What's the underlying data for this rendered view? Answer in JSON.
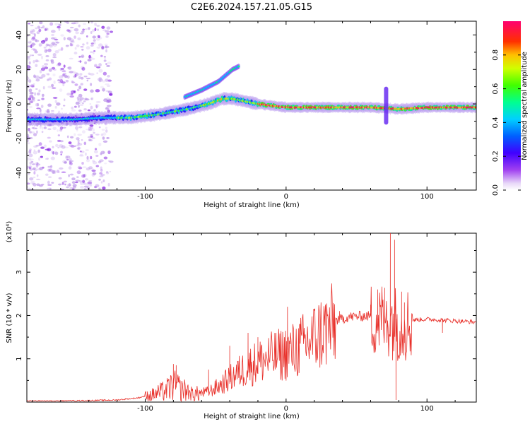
{
  "title": "C2E6.2024.157.21.05.G15",
  "colors": {
    "snr_line": "#e8302a",
    "background": "#ffffff",
    "axes": "#000000"
  },
  "chart_data": [
    {
      "type": "heatmap",
      "name": "spectrogram",
      "xlabel": "Height of straight line (km)",
      "ylabel": "Frequency (Hz)",
      "xlim": [
        -184,
        135
      ],
      "ylim": [
        -50,
        48
      ],
      "xticks": [
        -100,
        0,
        100
      ],
      "xtick_labels": [
        "-100",
        "0",
        "100"
      ],
      "yticks": [
        -40,
        -20,
        0,
        20,
        40
      ],
      "ytick_labels": [
        "-40",
        "-20",
        "0",
        "20",
        "40"
      ],
      "colorbar": {
        "label": "Normalized spectral amplitude",
        "range": [
          0,
          1
        ],
        "ticks": [
          0.0,
          0.2,
          0.4,
          0.6,
          0.8
        ],
        "tick_labels": [
          "0.0",
          "0.2",
          "0.4",
          "0.6",
          "0.8"
        ],
        "colormap": [
          "#ffffff",
          "#d9b8f0",
          "#7a00e6",
          "#1a1aff",
          "#00c8ff",
          "#00ff80",
          "#c8ff00",
          "#ffd000",
          "#ff2020",
          "#ff0060"
        ]
      },
      "ridge": [
        {
          "x": -184,
          "y": -9
        },
        {
          "x": -150,
          "y": -9
        },
        {
          "x": -130,
          "y": -8
        },
        {
          "x": -110,
          "y": -8
        },
        {
          "x": -90,
          "y": -6
        },
        {
          "x": -70,
          "y": -3
        },
        {
          "x": -55,
          "y": 0
        },
        {
          "x": -45,
          "y": 3
        },
        {
          "x": -38,
          "y": 3
        },
        {
          "x": -20,
          "y": 0
        },
        {
          "x": 0,
          "y": -2
        },
        {
          "x": 20,
          "y": -2
        },
        {
          "x": 60,
          "y": -2
        },
        {
          "x": 80,
          "y": -3
        },
        {
          "x": 100,
          "y": -2
        },
        {
          "x": 135,
          "y": -2
        }
      ],
      "secondary_ridge": [
        {
          "x": -72,
          "y": 4
        },
        {
          "x": -60,
          "y": 8
        },
        {
          "x": -48,
          "y": 13
        },
        {
          "x": -38,
          "y": 20
        },
        {
          "x": -33,
          "y": 22
        }
      ],
      "spike": {
        "x": 71,
        "y_range": [
          -12,
          10
        ]
      }
    },
    {
      "type": "line",
      "name": "snr",
      "xlabel": "Height of straight line (km)",
      "ylabel": "SNR (10 * v/v)",
      "y_multiplier": "(x10⁴)",
      "xlim": [
        -184,
        135
      ],
      "ylim": [
        0,
        3.9
      ],
      "xticks": [
        -100,
        0,
        100
      ],
      "xtick_labels": [
        "-100",
        "0",
        "100"
      ],
      "yticks": [
        1,
        2,
        3
      ],
      "ytick_labels": [
        "1",
        "2",
        "3"
      ],
      "series": [
        {
          "envelope": [
            {
              "x": -184,
              "y": 0.02
            },
            {
              "x": -150,
              "y": 0.03
            },
            {
              "x": -120,
              "y": 0.05
            },
            {
              "x": -105,
              "y": 0.1
            },
            {
              "x": -95,
              "y": 0.18
            },
            {
              "x": -85,
              "y": 0.3
            },
            {
              "x": -80,
              "y": 0.42
            },
            {
              "x": -75,
              "y": 0.35
            },
            {
              "x": -65,
              "y": 0.2
            },
            {
              "x": -55,
              "y": 0.25
            },
            {
              "x": -45,
              "y": 0.45
            },
            {
              "x": -35,
              "y": 0.7
            },
            {
              "x": -25,
              "y": 0.9
            },
            {
              "x": -15,
              "y": 1.05
            },
            {
              "x": -5,
              "y": 1.15
            },
            {
              "x": 5,
              "y": 1.25
            },
            {
              "x": 15,
              "y": 1.45
            },
            {
              "x": 25,
              "y": 1.7
            },
            {
              "x": 35,
              "y": 1.9
            },
            {
              "x": 45,
              "y": 1.98
            },
            {
              "x": 55,
              "y": 2.0
            },
            {
              "x": 65,
              "y": 2.0
            },
            {
              "x": 72,
              "y": 2.0
            },
            {
              "x": 80,
              "y": 1.9
            },
            {
              "x": 90,
              "y": 1.9
            },
            {
              "x": 100,
              "y": 1.92
            },
            {
              "x": 110,
              "y": 1.9
            },
            {
              "x": 120,
              "y": 1.88
            },
            {
              "x": 135,
              "y": 1.85
            }
          ],
          "peaks": [
            {
              "x": -95,
              "y": 0.3
            },
            {
              "x": -80,
              "y": 0.88
            },
            {
              "x": -78,
              "y": 0.85
            },
            {
              "x": -55,
              "y": 0.75
            },
            {
              "x": -40,
              "y": 1.3
            },
            {
              "x": -27,
              "y": 1.6
            },
            {
              "x": -20,
              "y": 1.5
            },
            {
              "x": 1,
              "y": 2.2
            },
            {
              "x": 10,
              "y": 1.8
            },
            {
              "x": 38,
              "y": 2.1
            },
            {
              "x": 60,
              "y": 2.25
            },
            {
              "x": 65,
              "y": 2.6
            },
            {
              "x": 70,
              "y": 2.45
            },
            {
              "x": 74,
              "y": 3.9
            },
            {
              "x": 77,
              "y": 3.75
            },
            {
              "x": 78,
              "y": 0.05
            },
            {
              "x": 82,
              "y": 2.55
            },
            {
              "x": 84,
              "y": 2.3
            },
            {
              "x": 111,
              "y": 1.6
            }
          ]
        }
      ]
    }
  ]
}
